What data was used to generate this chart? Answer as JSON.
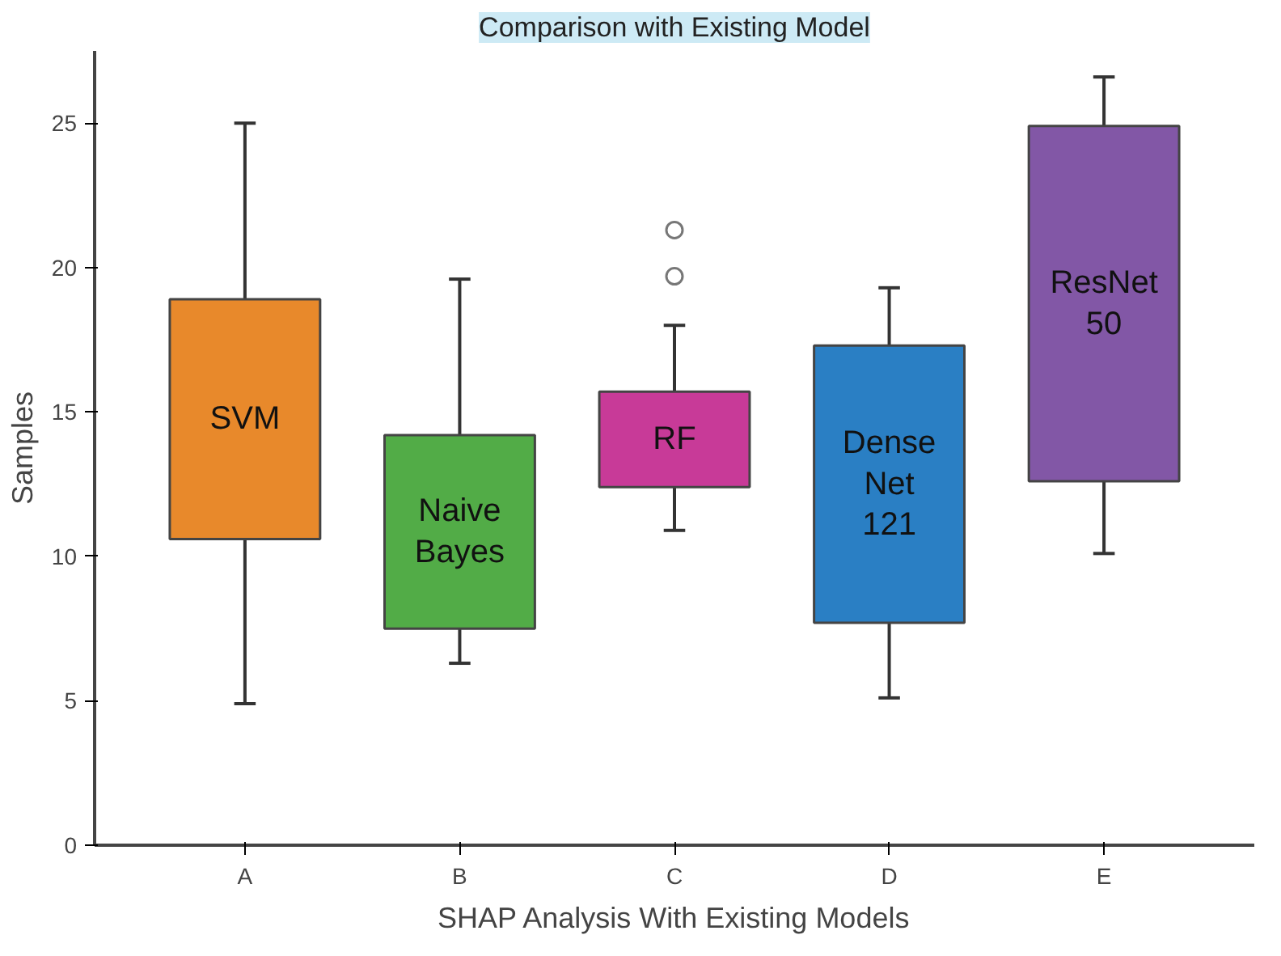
{
  "chart_data": {
    "type": "box",
    "title": "Comparison with Existing Model",
    "xlabel": "SHAP Analysis With Existing Models",
    "ylabel": "Samples",
    "categories": [
      "A",
      "B",
      "C",
      "D",
      "E"
    ],
    "colors": [
      "#e8892b",
      "#52ac47",
      "#c83a98",
      "#2a7fc4",
      "#8257a6"
    ],
    "boxes": [
      {
        "low": 4.9,
        "q1": 10.6,
        "median": null,
        "q3": 18.9,
        "high": 25
      },
      {
        "low": 6.3,
        "q1": 7.5,
        "median": null,
        "q3": 14.2,
        "high": 19.6
      },
      {
        "low": 10.9,
        "q1": 12.4,
        "median": null,
        "q3": 15.7,
        "high": 18.0,
        "outliers": [
          19.7,
          21.3
        ]
      },
      {
        "low": 5.1,
        "q1": 7.7,
        "median": null,
        "q3": 17.3,
        "high": 19.3
      },
      {
        "low": 10.1,
        "q1": 12.6,
        "median": null,
        "q3": 24.9,
        "high": 26.6
      }
    ],
    "annotations": [
      "SVM",
      "Naive\nBayes",
      "RF",
      "Dense\nNet\n121",
      "ResNet\n50"
    ],
    "ylim": [
      0,
      27.5
    ],
    "yticks": [
      0,
      5,
      10,
      15,
      20,
      25
    ],
    "grid": false
  }
}
